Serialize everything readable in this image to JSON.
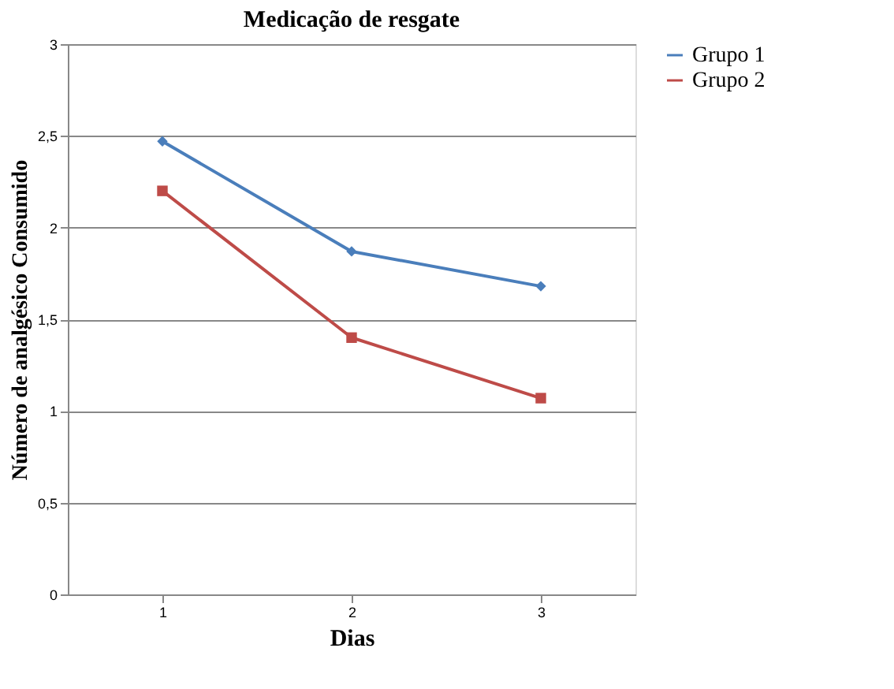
{
  "chart_data": {
    "type": "line",
    "title": "Medicação de resgate",
    "xlabel": "Dias",
    "ylabel": "Número de analgésico Consumido",
    "categories": [
      "1",
      "2",
      "3"
    ],
    "series": [
      {
        "name": "Grupo 1",
        "color": "#4a7ebb",
        "values": [
          2.47,
          1.87,
          1.68
        ],
        "marker": "diamond"
      },
      {
        "name": "Grupo 2",
        "color": "#be4b48",
        "values": [
          2.2,
          1.4,
          1.07
        ],
        "marker": "square"
      }
    ],
    "ylim": [
      0,
      3
    ],
    "yticks": [
      0,
      {
        "value": 0.5,
        "label": "0,5"
      },
      1,
      {
        "value": 1.5,
        "label": "1,5"
      },
      2,
      {
        "value": 2.5,
        "label": "2,5"
      },
      3
    ],
    "grid": "y",
    "legend": "right",
    "line_style": "solid"
  }
}
